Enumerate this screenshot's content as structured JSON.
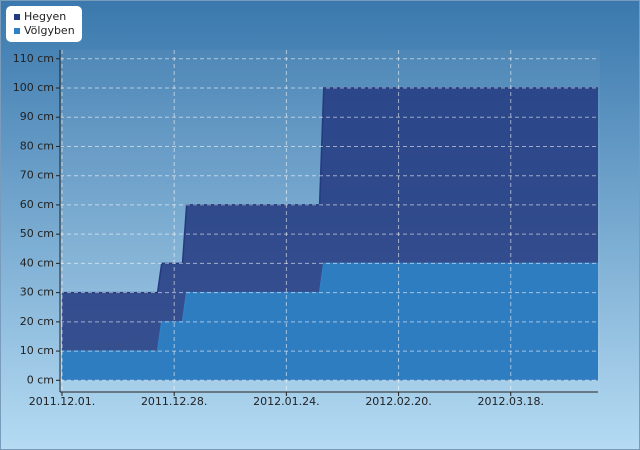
{
  "chart_data": {
    "type": "area",
    "x": [
      "2011.12.01",
      "2011.12.24",
      "2011.12.25",
      "2011.12.30",
      "2011.12.31",
      "2012.02.01",
      "2012.02.02",
      "2012.04.08"
    ],
    "series": [
      {
        "name": "Hegyen",
        "color": "#233a80",
        "values": [
          30,
          30,
          40,
          40,
          60,
          60,
          100,
          100
        ]
      },
      {
        "name": "Völgyben",
        "color": "#2f80c4",
        "values": [
          10,
          10,
          20,
          20,
          30,
          30,
          40,
          40
        ]
      }
    ],
    "xlim": [
      "2011.12.01",
      "2012.04.08"
    ],
    "xticks": [
      {
        "value": "2011.12.01",
        "label": "2011.12.01."
      },
      {
        "value": "2011.12.28",
        "label": "2011.12.28."
      },
      {
        "value": "2012.01.24",
        "label": "2012.01.24."
      },
      {
        "value": "2012.02.20",
        "label": "2012.02.20."
      },
      {
        "value": "2012.03.18",
        "label": "2012.03.18."
      }
    ],
    "ylim": [
      -4,
      113
    ],
    "yticks": [
      {
        "value": 0,
        "label": "0 cm"
      },
      {
        "value": 10,
        "label": "10 cm"
      },
      {
        "value": 20,
        "label": "20 cm"
      },
      {
        "value": 30,
        "label": "30 cm"
      },
      {
        "value": 40,
        "label": "40 cm"
      },
      {
        "value": 50,
        "label": "50 cm"
      },
      {
        "value": 60,
        "label": "60 cm"
      },
      {
        "value": 70,
        "label": "70 cm"
      },
      {
        "value": 80,
        "label": "80 cm"
      },
      {
        "value": 90,
        "label": "90 cm"
      },
      {
        "value": 100,
        "label": "100 cm"
      },
      {
        "value": 110,
        "label": "110 cm"
      }
    ],
    "grid": true,
    "legend": "top-left"
  }
}
